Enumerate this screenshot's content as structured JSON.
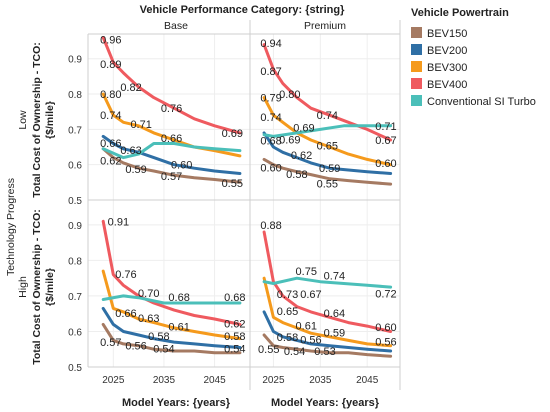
{
  "chart_data": {
    "type": "line",
    "column_header": "Vehicle Performance Category: {string}",
    "columns": [
      "Base",
      "Premium"
    ],
    "row_header": "Technology Progress",
    "rows": [
      "Low",
      "High"
    ],
    "ylabel_line1": "Total Cost of Ownership - TCO:",
    "ylabel_line2": "{$/mile}",
    "xlabel": "Model Years: {years}",
    "x_ticks": [
      2025,
      2035,
      2045
    ],
    "y_ticks": [
      "0.5",
      "0.6",
      "0.7",
      "0.8",
      "0.9"
    ],
    "x_range": [
      2020,
      2052
    ],
    "y_range": [
      0.5,
      0.97
    ],
    "legend_title": "Vehicle Powertrain",
    "legend_position": "right",
    "series": [
      {
        "name": "BEV150",
        "color": "#a57a62"
      },
      {
        "name": "BEV200",
        "color": "#2f6fa5"
      },
      {
        "name": "BEV300",
        "color": "#f59a1c"
      },
      {
        "name": "BEV400",
        "color": "#ef5a5f"
      },
      {
        "name": "Conventional SI Turbo",
        "color": "#4bbfb9"
      }
    ],
    "panels": [
      {
        "row": 0,
        "col": 0,
        "lines": [
          {
            "series": "BEV150",
            "x": [
              2023,
              2025,
              2027,
              2030,
              2033,
              2037,
              2041,
              2045,
              2050
            ],
            "y": [
              0.645,
              0.62,
              0.605,
              0.59,
              0.582,
              0.57,
              0.563,
              0.558,
              0.55
            ]
          },
          {
            "series": "BEV200",
            "x": [
              2023,
              2025,
              2027,
              2030,
              2033,
              2037,
              2041,
              2045,
              2050
            ],
            "y": [
              0.68,
              0.66,
              0.645,
              0.635,
              0.62,
              0.6,
              0.59,
              0.582,
              0.575
            ]
          },
          {
            "series": "BEV300",
            "x": [
              2023,
              2025,
              2027,
              2030,
              2033,
              2037,
              2041,
              2045,
              2050
            ],
            "y": [
              0.8,
              0.74,
              0.72,
              0.71,
              0.69,
              0.67,
              0.65,
              0.64,
              0.625
            ]
          },
          {
            "series": "BEV400",
            "x": [
              2023,
              2025,
              2027,
              2030,
              2033,
              2037,
              2041,
              2045,
              2050
            ],
            "y": [
              0.96,
              0.89,
              0.86,
              0.82,
              0.79,
              0.76,
              0.73,
              0.71,
              0.69
            ]
          },
          {
            "series": "Conventional SI Turbo",
            "x": [
              2023,
              2027,
              2030,
              2033,
              2037,
              2041,
              2045,
              2050
            ],
            "y": [
              0.645,
              0.62,
              0.63,
              0.66,
              0.66,
              0.65,
              0.645,
              0.64
            ]
          }
        ],
        "labels": [
          {
            "text": "0.96",
            "x": 2024.5,
            "y": 0.955
          },
          {
            "text": "0.89",
            "x": 2024.5,
            "y": 0.885
          },
          {
            "text": "0.82",
            "x": 2028.5,
            "y": 0.82
          },
          {
            "text": "0.76",
            "x": 2036.5,
            "y": 0.76
          },
          {
            "text": "0.69",
            "x": 2048.5,
            "y": 0.69
          },
          {
            "text": "0.80",
            "x": 2024.5,
            "y": 0.8
          },
          {
            "text": "0.74",
            "x": 2024.5,
            "y": 0.74
          },
          {
            "text": "0.71",
            "x": 2030.5,
            "y": 0.715
          },
          {
            "text": "0.66",
            "x": 2036.5,
            "y": 0.675
          },
          {
            "text": "0.66",
            "x": 2024.5,
            "y": 0.662
          },
          {
            "text": "0.63",
            "x": 2028.5,
            "y": 0.642
          },
          {
            "text": "0.60",
            "x": 2038.5,
            "y": 0.6
          },
          {
            "text": "0.62",
            "x": 2024.5,
            "y": 0.612
          },
          {
            "text": "0.59",
            "x": 2029.5,
            "y": 0.588
          },
          {
            "text": "0.57",
            "x": 2036.5,
            "y": 0.568
          },
          {
            "text": "0.55",
            "x": 2048.5,
            "y": 0.548
          }
        ]
      },
      {
        "row": 0,
        "col": 1,
        "lines": [
          {
            "series": "BEV150",
            "x": [
              2023,
              2025,
              2027,
              2030,
              2033,
              2037,
              2041,
              2045,
              2050
            ],
            "y": [
              0.615,
              0.6,
              0.59,
              0.58,
              0.572,
              0.56,
              0.555,
              0.55,
              0.545
            ]
          },
          {
            "series": "BEV200",
            "x": [
              2023,
              2025,
              2027,
              2030,
              2033,
              2037,
              2041,
              2045,
              2050
            ],
            "y": [
              0.69,
              0.65,
              0.635,
              0.62,
              0.605,
              0.59,
              0.585,
              0.58,
              0.575
            ]
          },
          {
            "series": "BEV300",
            "x": [
              2023,
              2025,
              2027,
              2030,
              2033,
              2037,
              2041,
              2045,
              2050
            ],
            "y": [
              0.79,
              0.74,
              0.72,
              0.69,
              0.67,
              0.65,
              0.63,
              0.615,
              0.6
            ]
          },
          {
            "series": "BEV400",
            "x": [
              2023,
              2025,
              2027,
              2030,
              2033,
              2037,
              2041,
              2045,
              2050
            ],
            "y": [
              0.94,
              0.87,
              0.83,
              0.79,
              0.76,
              0.74,
              0.72,
              0.7,
              0.67
            ]
          },
          {
            "series": "Conventional SI Turbo",
            "x": [
              2023,
              2025,
              2030,
              2035,
              2040,
              2045,
              2050
            ],
            "y": [
              0.685,
              0.68,
              0.69,
              0.7,
              0.71,
              0.71,
              0.71
            ]
          }
        ],
        "labels": [
          {
            "text": "0.94",
            "x": 2024.5,
            "y": 0.945
          },
          {
            "text": "0.87",
            "x": 2024.5,
            "y": 0.865
          },
          {
            "text": "0.80",
            "x": 2028.5,
            "y": 0.8
          },
          {
            "text": "0.74",
            "x": 2036.5,
            "y": 0.74
          },
          {
            "text": "0.71",
            "x": 2049,
            "y": 0.71
          },
          {
            "text": "0.79",
            "x": 2024.5,
            "y": 0.79
          },
          {
            "text": "0.74",
            "x": 2024.5,
            "y": 0.735
          },
          {
            "text": "0.69",
            "x": 2031.5,
            "y": 0.705
          },
          {
            "text": "0.69",
            "x": 2028.5,
            "y": 0.672
          },
          {
            "text": "0.65",
            "x": 2036.5,
            "y": 0.655
          },
          {
            "text": "0.67",
            "x": 2049,
            "y": 0.67
          },
          {
            "text": "0.68",
            "x": 2024.5,
            "y": 0.668
          },
          {
            "text": "0.62",
            "x": 2031,
            "y": 0.627
          },
          {
            "text": "0.59",
            "x": 2037,
            "y": 0.59
          },
          {
            "text": "0.60",
            "x": 2049,
            "y": 0.605
          },
          {
            "text": "0.60",
            "x": 2024.5,
            "y": 0.592
          },
          {
            "text": "0.58",
            "x": 2030,
            "y": 0.573
          },
          {
            "text": "0.55",
            "x": 2036.5,
            "y": 0.547
          }
        ]
      },
      {
        "row": 1,
        "col": 0,
        "lines": [
          {
            "series": "BEV150",
            "x": [
              2023,
              2025,
              2027,
              2030,
              2033,
              2037,
              2041,
              2045,
              2050
            ],
            "y": [
              0.62,
              0.575,
              0.565,
              0.56,
              0.55,
              0.545,
              0.545,
              0.54,
              0.54
            ]
          },
          {
            "series": "BEV200",
            "x": [
              2023,
              2025,
              2027,
              2030,
              2033,
              2037,
              2041,
              2045,
              2050
            ],
            "y": [
              0.665,
              0.62,
              0.6,
              0.59,
              0.58,
              0.57,
              0.565,
              0.56,
              0.555
            ]
          },
          {
            "series": "BEV300",
            "x": [
              2023,
              2025,
              2027,
              2030,
              2033,
              2037,
              2041,
              2045,
              2050
            ],
            "y": [
              0.77,
              0.665,
              0.655,
              0.635,
              0.625,
              0.61,
              0.6,
              0.59,
              0.58
            ]
          },
          {
            "series": "BEV400",
            "x": [
              2023,
              2025,
              2027,
              2030,
              2033,
              2037,
              2041,
              2045,
              2050
            ],
            "y": [
              0.91,
              0.76,
              0.73,
              0.7,
              0.68,
              0.66,
              0.645,
              0.635,
              0.62
            ]
          },
          {
            "series": "Conventional SI Turbo",
            "x": [
              2023,
              2027,
              2030,
              2035,
              2040,
              2045,
              2050
            ],
            "y": [
              0.69,
              0.7,
              0.695,
              0.68,
              0.68,
              0.68,
              0.68
            ]
          }
        ],
        "labels": [
          {
            "text": "0.91",
            "x": 2026,
            "y": 0.91
          },
          {
            "text": "0.76",
            "x": 2027.5,
            "y": 0.762
          },
          {
            "text": "0.70",
            "x": 2032,
            "y": 0.708
          },
          {
            "text": "0.68",
            "x": 2038,
            "y": 0.697
          },
          {
            "text": "0.68",
            "x": 2049,
            "y": 0.697
          },
          {
            "text": "0.66",
            "x": 2027.5,
            "y": 0.652
          },
          {
            "text": "0.63",
            "x": 2032,
            "y": 0.638
          },
          {
            "text": "0.61",
            "x": 2038,
            "y": 0.614
          },
          {
            "text": "0.62",
            "x": 2049,
            "y": 0.623
          },
          {
            "text": "0.58",
            "x": 2034,
            "y": 0.587
          },
          {
            "text": "0.58",
            "x": 2049,
            "y": 0.587
          },
          {
            "text": "0.57",
            "x": 2024.5,
            "y": 0.57
          },
          {
            "text": "0.56",
            "x": 2029.5,
            "y": 0.56
          },
          {
            "text": "0.54",
            "x": 2035,
            "y": 0.552
          },
          {
            "text": "0.54",
            "x": 2049,
            "y": 0.552
          }
        ]
      },
      {
        "row": 1,
        "col": 1,
        "lines": [
          {
            "series": "BEV150",
            "x": [
              2023,
              2025,
              2027,
              2030,
              2033,
              2037,
              2041,
              2045,
              2050
            ],
            "y": [
              0.59,
              0.56,
              0.555,
              0.55,
              0.545,
              0.54,
              0.54,
              0.535,
              0.53
            ]
          },
          {
            "series": "BEV200",
            "x": [
              2023,
              2025,
              2027,
              2030,
              2033,
              2037,
              2041,
              2045,
              2050
            ],
            "y": [
              0.655,
              0.6,
              0.585,
              0.575,
              0.565,
              0.56,
              0.555,
              0.55,
              0.545
            ]
          },
          {
            "series": "BEV300",
            "x": [
              2023,
              2025,
              2027,
              2030,
              2033,
              2037,
              2041,
              2045,
              2050
            ],
            "y": [
              0.75,
              0.64,
              0.625,
              0.61,
              0.595,
              0.585,
              0.575,
              0.565,
              0.56
            ]
          },
          {
            "series": "BEV400",
            "x": [
              2023,
              2025,
              2027,
              2030,
              2033,
              2037,
              2041,
              2045,
              2050
            ],
            "y": [
              0.88,
              0.74,
              0.7,
              0.67,
              0.655,
              0.64,
              0.625,
              0.615,
              0.6
            ]
          },
          {
            "series": "Conventional SI Turbo",
            "x": [
              2023,
              2025,
              2030,
              2035,
              2040,
              2045,
              2050
            ],
            "y": [
              0.74,
              0.735,
              0.75,
              0.74,
              0.735,
              0.73,
              0.725
            ]
          }
        ],
        "labels": [
          {
            "text": "0.88",
            "x": 2024.5,
            "y": 0.9
          },
          {
            "text": "0.75",
            "x": 2032,
            "y": 0.77
          },
          {
            "text": "0.74",
            "x": 2038,
            "y": 0.757
          },
          {
            "text": "0.72",
            "x": 2049,
            "y": 0.707
          },
          {
            "text": "0.73",
            "x": 2028,
            "y": 0.705
          },
          {
            "text": "0.67",
            "x": 2033,
            "y": 0.705
          },
          {
            "text": "0.65",
            "x": 2028,
            "y": 0.658
          },
          {
            "text": "0.64",
            "x": 2038,
            "y": 0.652
          },
          {
            "text": "0.60",
            "x": 2049,
            "y": 0.612
          },
          {
            "text": "0.61",
            "x": 2032,
            "y": 0.617
          },
          {
            "text": "0.59",
            "x": 2038,
            "y": 0.597
          },
          {
            "text": "0.56",
            "x": 2049,
            "y": 0.572
          },
          {
            "text": "0.58",
            "x": 2028,
            "y": 0.585
          },
          {
            "text": "0.56",
            "x": 2033,
            "y": 0.578
          },
          {
            "text": "0.55",
            "x": 2024,
            "y": 0.55
          },
          {
            "text": "0.54",
            "x": 2029.5,
            "y": 0.545
          },
          {
            "text": "0.53",
            "x": 2036,
            "y": 0.545
          }
        ]
      }
    ]
  }
}
